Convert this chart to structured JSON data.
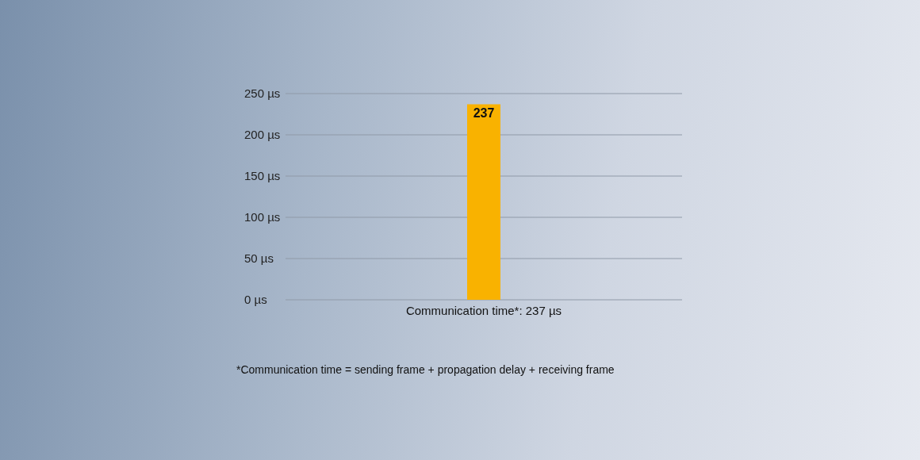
{
  "chart_data": {
    "type": "bar",
    "categories": [
      "Communication time*: 237 µs"
    ],
    "values": [
      237
    ],
    "color": "#f9b200",
    "ylim": [
      0,
      250
    ],
    "yticks": [
      {
        "value": 0,
        "label": "0 µs"
      },
      {
        "value": 50,
        "label": "50 µs"
      },
      {
        "value": 100,
        "label": "100 µs"
      },
      {
        "value": 150,
        "label": "150 µs"
      },
      {
        "value": 200,
        "label": "200 µs"
      },
      {
        "value": 250,
        "label": "250 µs"
      }
    ],
    "grid": "y",
    "data_labels": true,
    "annotations": [
      "*Communication time = sending frame + propagation delay + receiving frame"
    ]
  }
}
